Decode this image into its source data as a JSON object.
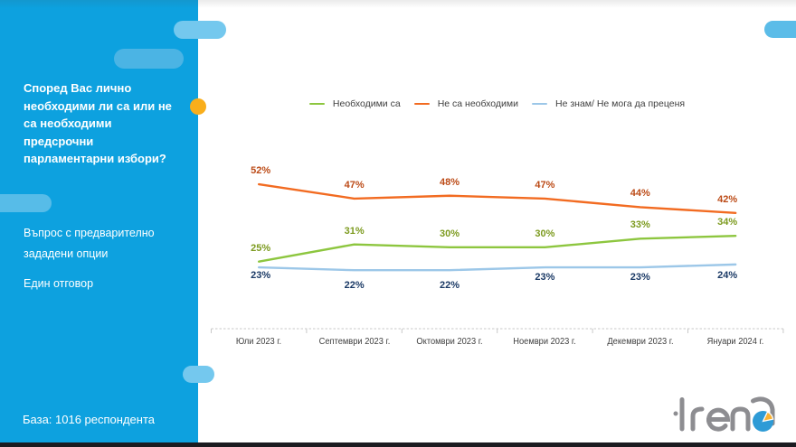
{
  "sidebar": {
    "question": "Според Вас лично\nнеобходими ли са или не\nса необходими\nпредсрочни\nпарламентарни избори?",
    "note1": "Въпрос с предварително\nзададени опции",
    "note2": "Един отговор",
    "base": "База:  1016 респондента"
  },
  "colors": {
    "sidebar_bg": "#0DA1DF",
    "accent_yellow": "#F9AE1B",
    "green_line": "#8DC63F",
    "orange_line": "#F26B21",
    "blue_line": "#9CC7E8",
    "green_label": "#7D9B20",
    "orange_label": "#BC4B17",
    "navy_label": "#1B3A66",
    "logo_gray": "#8D8D91",
    "logo_pie_blue": "#2E9BD6",
    "logo_pie_yellow": "#F9B233"
  },
  "chart_data": {
    "type": "line",
    "categories": [
      "Юли 2023 г.",
      "Септември 2023 г.",
      "Октомври 2023 г.",
      "Ноември 2023 г.",
      "Декември 2023 г.",
      "Януари 2024 г."
    ],
    "series": [
      {
        "name": "Необходими са",
        "color": "#8DC63F",
        "label_color": "#7D9B20",
        "values": [
          25,
          31,
          30,
          30,
          33,
          34
        ]
      },
      {
        "name": "Не са необходими",
        "color": "#F26B21",
        "label_color": "#BC4B17",
        "values": [
          52,
          47,
          48,
          47,
          44,
          42
        ]
      },
      {
        "name": "Не знам/ Не мога да преценя",
        "color": "#9CC7E8",
        "label_color": "#1B3A66",
        "values": [
          23,
          22,
          22,
          23,
          23,
          24
        ]
      }
    ],
    "ylim": [
      0,
      60
    ],
    "legend_position": "top",
    "grid": false,
    "title": ""
  },
  "logo": {
    "text": "trend"
  }
}
